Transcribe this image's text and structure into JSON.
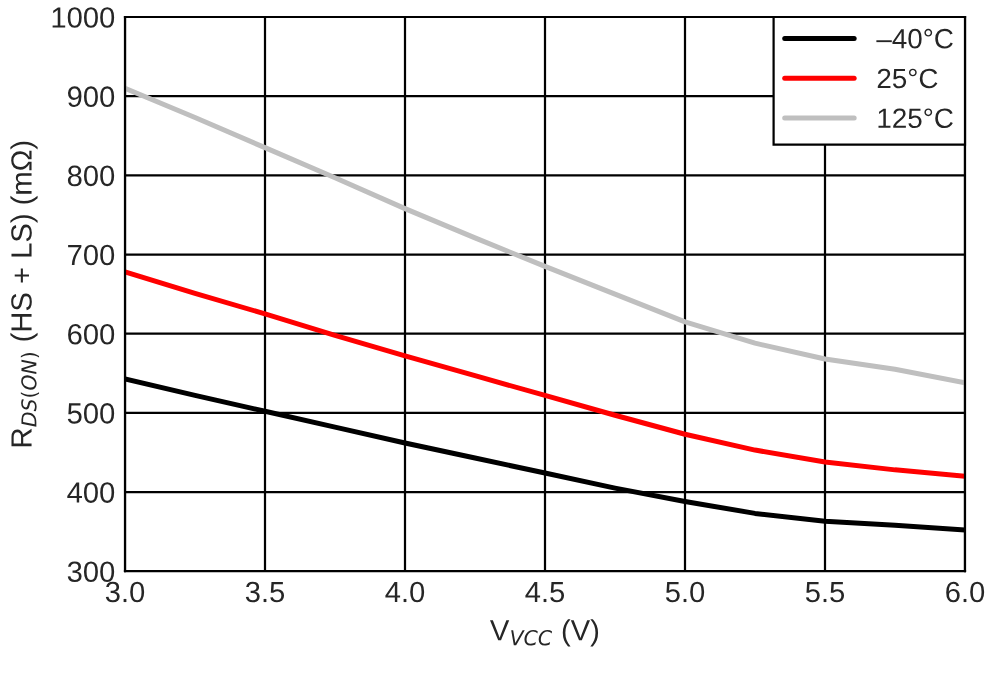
{
  "chart_data": {
    "type": "line",
    "xlabel": "V$_{VCC}$ (V)",
    "ylabel": "R$_{DS(ON)}$ (HS + LS) (mΩ)",
    "x": [
      3.0,
      3.25,
      3.5,
      3.75,
      4.0,
      4.25,
      4.5,
      4.75,
      5.0,
      5.25,
      5.5,
      5.75,
      6.0
    ],
    "series": [
      {
        "name": "–40°C",
        "color": "#000000",
        "values": [
          543,
          522,
          502,
          482,
          462,
          443,
          424,
          405,
          388,
          373,
          363,
          358,
          352
        ]
      },
      {
        "name": "25°C",
        "color": "#ff0000",
        "values": [
          678,
          651,
          625,
          598,
          572,
          547,
          522,
          497,
          473,
          453,
          438,
          428,
          420
        ]
      },
      {
        "name": "125°C",
        "color": "#bfbfbf",
        "values": [
          910,
          873,
          835,
          797,
          758,
          721,
          685,
          650,
          615,
          588,
          568,
          555,
          538
        ]
      }
    ],
    "xlim": [
      3.0,
      6.0
    ],
    "ylim": [
      300,
      1000
    ],
    "xticks": [
      {
        "value": 3.0,
        "label": "3.0"
      },
      {
        "value": 3.5,
        "label": "3.5"
      },
      {
        "value": 4.0,
        "label": "4.0"
      },
      {
        "value": 4.5,
        "label": "4.5"
      },
      {
        "value": 5.0,
        "label": "5.0"
      },
      {
        "value": 5.5,
        "label": "5.5"
      },
      {
        "value": 6.0,
        "label": "6.0"
      }
    ],
    "yticks": [
      300,
      400,
      500,
      600,
      700,
      800,
      900,
      1000
    ],
    "grid": true,
    "legend": "top right",
    "line_style": "solid",
    "marker": "none"
  }
}
